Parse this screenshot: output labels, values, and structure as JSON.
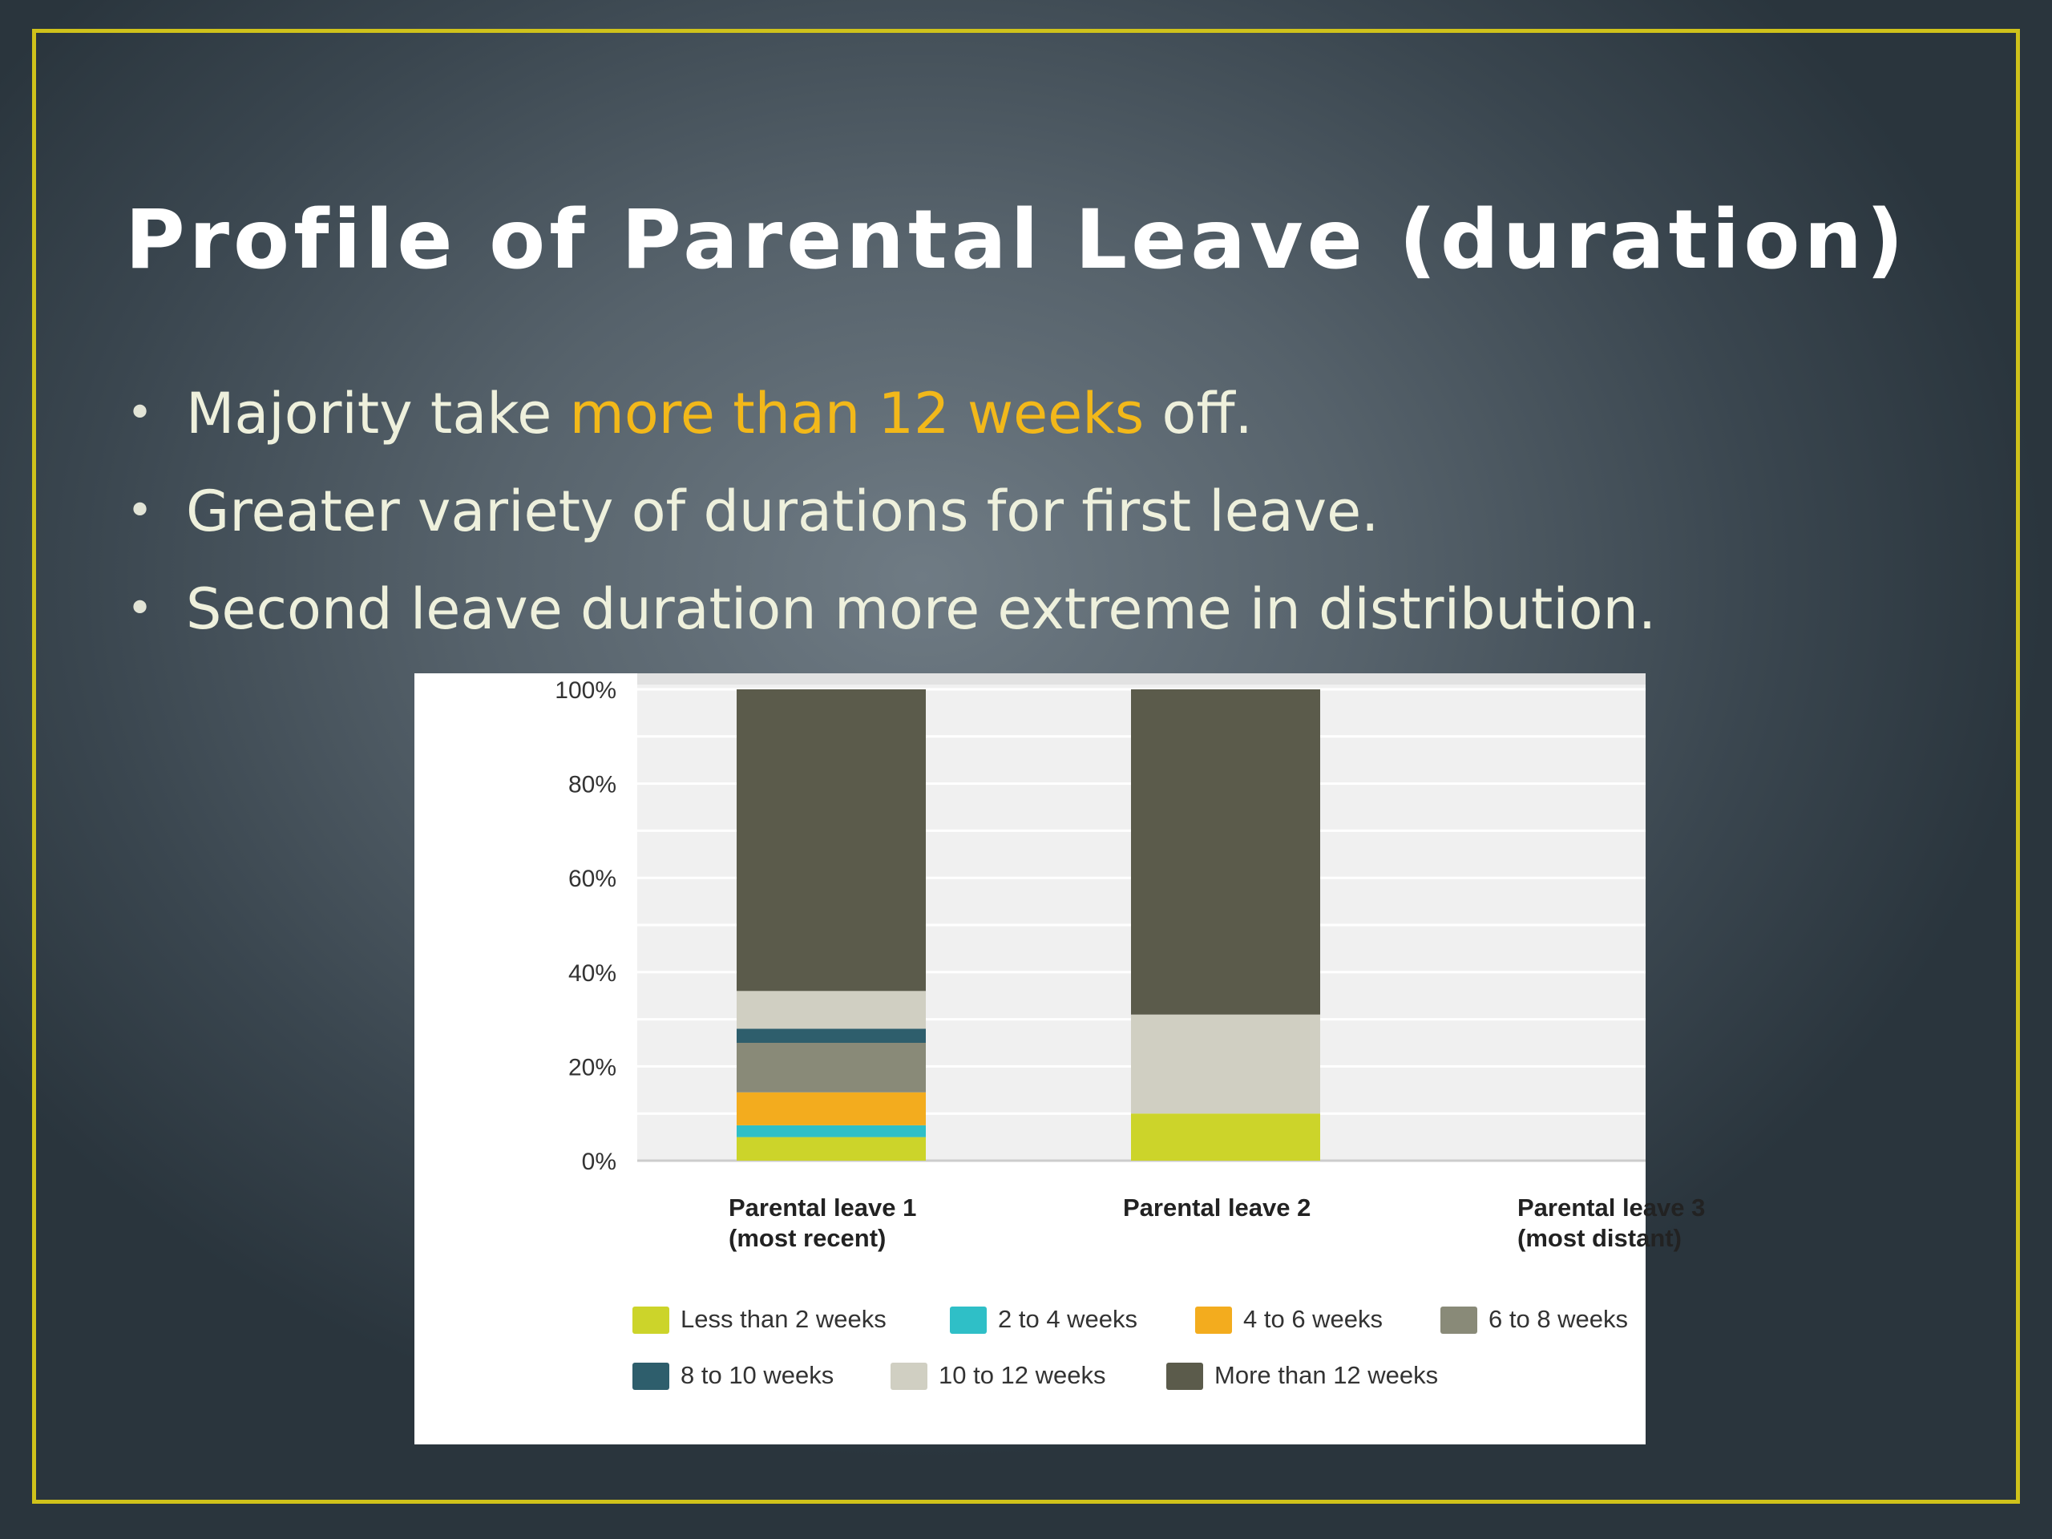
{
  "slide": {
    "title": "Profile of Parental Leave (duration)",
    "bullets": [
      {
        "before": "Majority take ",
        "highlight": "more than 12 weeks",
        "after": " off."
      },
      {
        "before": "Greater variety of durations for first leave.",
        "highlight": "",
        "after": ""
      },
      {
        "before": "Second leave duration more extreme in distribution.",
        "highlight": "",
        "after": ""
      }
    ],
    "bullet_glyph": "•",
    "colors": {
      "frame": "#cfc21b",
      "highlight": "#f2b81a",
      "text": "#eef0dc"
    }
  },
  "chart_data": {
    "type": "bar",
    "stacked": true,
    "y_tick_labels": [
      "0%",
      "20%",
      "40%",
      "60%",
      "80%",
      "100%"
    ],
    "ylim": [
      0,
      100
    ],
    "categories": [
      {
        "lines": [
          "Parental leave 1",
          "(most recent)"
        ]
      },
      {
        "lines": [
          "Parental leave 2"
        ]
      },
      {
        "lines": [
          "Parental leave 3",
          "(most distant)"
        ]
      }
    ],
    "series": [
      {
        "name": "Less than 2 weeks",
        "color": "#ccd42a",
        "values": [
          5,
          10,
          0
        ]
      },
      {
        "name": "2 to 4 weeks",
        "color": "#2fbfc7",
        "values": [
          2.5,
          0,
          0
        ]
      },
      {
        "name": "4 to 6 weeks",
        "color": "#f3ac1e",
        "values": [
          7,
          0,
          0
        ]
      },
      {
        "name": "6 to 8 weeks",
        "color": "#898a78",
        "values": [
          10.5,
          0,
          0
        ]
      },
      {
        "name": "8 to 10 weeks",
        "color": "#2e5e6c",
        "values": [
          3,
          0,
          0
        ]
      },
      {
        "name": "10 to 12 weeks",
        "color": "#d0cfc2",
        "values": [
          8,
          21,
          0
        ]
      },
      {
        "name": "More than 12 weeks",
        "color": "#5b5b4b",
        "values": [
          64,
          69,
          0
        ]
      }
    ],
    "grid": true,
    "legend_position": "bottom"
  }
}
